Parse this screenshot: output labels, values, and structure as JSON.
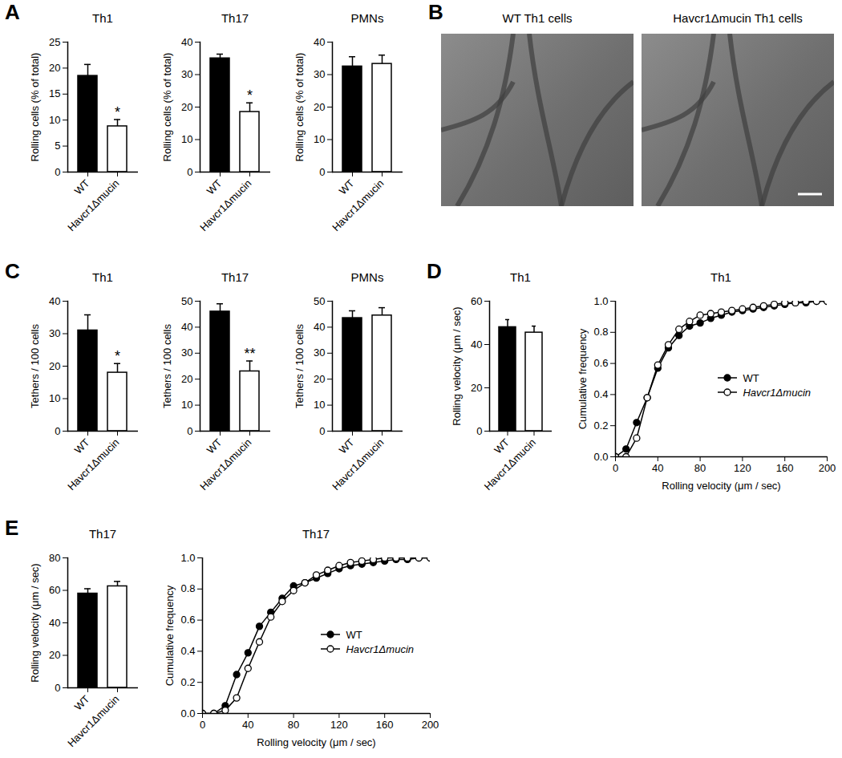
{
  "chart_data": [
    {
      "type": "bar",
      "panel": "A",
      "title": "Th1",
      "categories": [
        "WT",
        "Havcr1Δmucin"
      ],
      "values": [
        18.5,
        8.8
      ],
      "errors": [
        2.2,
        1.3
      ],
      "colors": [
        "#000000",
        "#ffffff"
      ],
      "significance": [
        null,
        "*"
      ],
      "y_label": "Rolling cells (% of total)",
      "ylim": [
        0,
        25
      ],
      "yticks": [
        0,
        5,
        10,
        15,
        20,
        25
      ]
    },
    {
      "type": "bar",
      "title": "Th17",
      "categories": [
        "WT",
        "Havcr1Δmucin"
      ],
      "values": [
        35,
        18.5
      ],
      "errors": [
        1.3,
        2.8
      ],
      "colors": [
        "#000000",
        "#ffffff"
      ],
      "significance": [
        null,
        "*"
      ],
      "y_label": "Rolling cells (% of total)",
      "ylim": [
        0,
        40
      ],
      "yticks": [
        0,
        10,
        20,
        30,
        40
      ]
    },
    {
      "type": "bar",
      "title": "PMNs",
      "categories": [
        "WT",
        "Havcr1Δmucin"
      ],
      "values": [
        32.5,
        33.3
      ],
      "errors": [
        3,
        2.7
      ],
      "colors": [
        "#000000",
        "#ffffff"
      ],
      "significance": [
        null,
        null
      ],
      "y_label": "Rolling cells (% of total)",
      "ylim": [
        0,
        40
      ],
      "yticks": [
        0,
        10,
        20,
        30,
        40
      ]
    },
    {
      "type": "bar",
      "panel": "C",
      "title": "Th1",
      "categories": [
        "WT",
        "Havcr1Δmucin"
      ],
      "values": [
        31,
        18
      ],
      "errors": [
        4.8,
        2.8
      ],
      "colors": [
        "#000000",
        "#ffffff"
      ],
      "significance": [
        null,
        "*"
      ],
      "y_label": "Tethers / 100 cells",
      "ylim": [
        0,
        40
      ],
      "yticks": [
        0,
        10,
        20,
        30,
        40
      ]
    },
    {
      "type": "bar",
      "title": "Th17",
      "categories": [
        "WT",
        "Havcr1Δmucin"
      ],
      "values": [
        46,
        23
      ],
      "errors": [
        3,
        4
      ],
      "colors": [
        "#000000",
        "#ffffff"
      ],
      "significance": [
        null,
        "**"
      ],
      "y_label": "Tethers / 100 cells",
      "ylim": [
        0,
        50
      ],
      "yticks": [
        0,
        10,
        20,
        30,
        40,
        50
      ]
    },
    {
      "type": "bar",
      "title": "PMNs",
      "categories": [
        "WT",
        "Havcr1Δmucin"
      ],
      "values": [
        43.5,
        44.5
      ],
      "errors": [
        2.8,
        3
      ],
      "colors": [
        "#000000",
        "#ffffff"
      ],
      "significance": [
        null,
        null
      ],
      "y_label": "Tethers / 100 cells",
      "ylim": [
        0,
        50
      ],
      "yticks": [
        0,
        10,
        20,
        30,
        40,
        50
      ]
    },
    {
      "type": "bar",
      "panel": "D",
      "title": "Th1",
      "categories": [
        "WT",
        "Havcr1Δmucin"
      ],
      "values": [
        48,
        45.5
      ],
      "errors": [
        3.5,
        3
      ],
      "colors": [
        "#000000",
        "#ffffff"
      ],
      "significance": [
        null,
        null
      ],
      "y_label": "Rolling velocity (μm / sec)",
      "ylim": [
        0,
        60
      ],
      "yticks": [
        0,
        20,
        40,
        60
      ]
    },
    {
      "type": "line",
      "title": "Th1",
      "x_label": "Rolling velocity (μm / sec)",
      "y_label": "Cumulative frequency",
      "xlim": [
        0,
        200
      ],
      "xticks": [
        0,
        40,
        80,
        120,
        160,
        200
      ],
      "ylim": [
        0,
        1
      ],
      "yticks": [
        {
          "value": 0,
          "label": "0.0"
        },
        {
          "value": 0.2,
          "label": "0.2"
        },
        {
          "value": 0.4,
          "label": "0.4"
        },
        {
          "value": 0.6,
          "label": "0.6"
        },
        {
          "value": 0.8,
          "label": "0.8"
        },
        {
          "value": 1,
          "label": "1.0"
        }
      ],
      "legend": "right",
      "x": [
        0,
        10,
        20,
        30,
        40,
        50,
        60,
        70,
        80,
        90,
        100,
        110,
        120,
        130,
        140,
        150,
        160,
        170,
        180,
        190,
        200
      ],
      "series": [
        {
          "name": "WT",
          "color": "#000000",
          "marker": "filled",
          "values": [
            0,
            0.05,
            0.22,
            0.38,
            0.57,
            0.7,
            0.78,
            0.84,
            0.86,
            0.89,
            0.91,
            0.93,
            0.94,
            0.95,
            0.96,
            0.97,
            0.98,
            0.99,
            0.99,
            1.0,
            1.0
          ]
        },
        {
          "name": "Havcr1Δmucin",
          "color": "#000000",
          "marker": "open",
          "values": [
            0,
            0,
            0.12,
            0.38,
            0.59,
            0.72,
            0.82,
            0.87,
            0.91,
            0.92,
            0.93,
            0.94,
            0.95,
            0.96,
            0.97,
            0.98,
            0.99,
            0.99,
            1.0,
            1.0,
            1.0
          ]
        }
      ]
    },
    {
      "type": "bar",
      "panel": "E",
      "title": "Th17",
      "categories": [
        "WT",
        "Havcr1Δmucin"
      ],
      "values": [
        58,
        62.5
      ],
      "errors": [
        3,
        3
      ],
      "colors": [
        "#000000",
        "#ffffff"
      ],
      "significance": [
        null,
        null
      ],
      "y_label": "Rolling velocity (μm / sec)",
      "ylim": [
        0,
        80
      ],
      "yticks": [
        0,
        20,
        40,
        60,
        80
      ]
    },
    {
      "type": "line",
      "title": "Th17",
      "x_label": "Rolling velocity (μm / sec)",
      "y_label": "Cumulative frequency",
      "xlim": [
        0,
        200
      ],
      "xticks": [
        0,
        40,
        80,
        120,
        160,
        200
      ],
      "ylim": [
        0,
        1
      ],
      "yticks": [
        {
          "value": 0,
          "label": "0.0"
        },
        {
          "value": 0.2,
          "label": "0.2"
        },
        {
          "value": 0.4,
          "label": "0.4"
        },
        {
          "value": 0.6,
          "label": "0.6"
        },
        {
          "value": 0.8,
          "label": "0.8"
        },
        {
          "value": 1,
          "label": "1.0"
        }
      ],
      "legend": "right",
      "x": [
        0,
        10,
        20,
        30,
        40,
        50,
        60,
        70,
        80,
        90,
        100,
        110,
        120,
        130,
        140,
        150,
        160,
        170,
        180,
        190,
        200
      ],
      "series": [
        {
          "name": "WT",
          "color": "#000000",
          "marker": "filled",
          "values": [
            0,
            0,
            0.05,
            0.25,
            0.39,
            0.56,
            0.65,
            0.74,
            0.82,
            0.84,
            0.87,
            0.9,
            0.93,
            0.95,
            0.96,
            0.97,
            0.98,
            0.99,
            0.99,
            1,
            1
          ]
        },
        {
          "name": "Havcr1Δmucin",
          "color": "#000000",
          "marker": "open",
          "values": [
            0,
            0,
            0.02,
            0.1,
            0.29,
            0.46,
            0.62,
            0.72,
            0.79,
            0.84,
            0.89,
            0.92,
            0.95,
            0.97,
            0.98,
            0.99,
            1,
            1,
            1,
            1,
            1
          ]
        }
      ]
    }
  ],
  "image_panel": {
    "panel": "B",
    "images": [
      {
        "title": "WT Th1 cells"
      },
      {
        "title": "Havcr1Δmucin Th1 cells"
      }
    ]
  }
}
